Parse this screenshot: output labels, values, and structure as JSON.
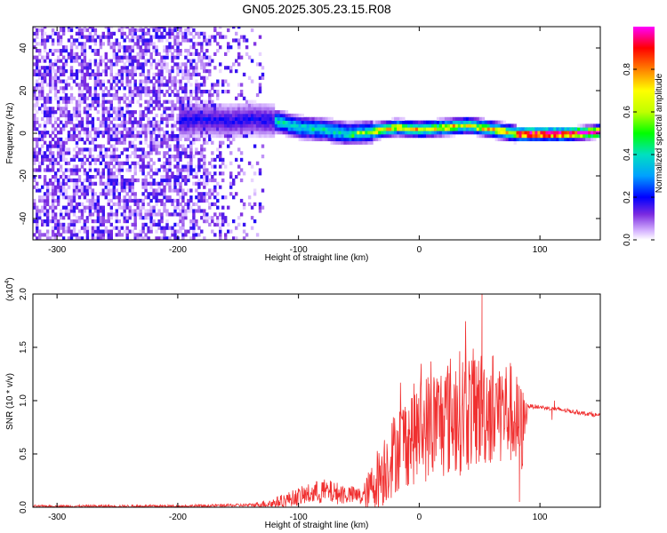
{
  "title": "GN05.2025.305.23.15.R08",
  "chart_data": [
    {
      "type": "heatmap",
      "name": "spectrogram",
      "xlabel": "Height of straight line (km)",
      "ylabel": "Frequency (Hz)",
      "xlim": [
        -320,
        150
      ],
      "ylim": [
        -50,
        50
      ],
      "xticks": [
        -300,
        -200,
        -100,
        0,
        100
      ],
      "yticks": [
        -40,
        -20,
        0,
        20,
        40
      ],
      "colorbar": {
        "label": "Normalized spectral amplitude",
        "range": [
          0,
          1
        ],
        "ticks": [
          0.0,
          0.2,
          0.4,
          0.6,
          0.8
        ],
        "tick_labels": [
          "0.0",
          "0.2",
          "0.4",
          "0.6",
          "0.8"
        ],
        "colormap": [
          "#ffffff",
          "#d8b8ff",
          "#7b2be0",
          "#0000ff",
          "#00a0ff",
          "#00e0c0",
          "#00ff00",
          "#c0ff00",
          "#ffff00",
          "#ff8000",
          "#ff0000",
          "#ff00ff"
        ]
      },
      "features": {
        "noise_region_km": [
          -320,
          -130
        ],
        "noise_amplitude": [
          0.02,
          0.2
        ],
        "ridge_start_km": -200,
        "ridge_center_hz": [
          [
            -200,
            5
          ],
          [
            -180,
            6
          ],
          [
            -160,
            5
          ],
          [
            -140,
            6
          ],
          [
            -120,
            5
          ],
          [
            -100,
            2
          ],
          [
            -80,
            1
          ],
          [
            -60,
            -1
          ],
          [
            -40,
            0
          ],
          [
            -20,
            2
          ],
          [
            0,
            1
          ],
          [
            20,
            2
          ],
          [
            40,
            3
          ],
          [
            60,
            1
          ],
          [
            80,
            -1
          ],
          [
            100,
            -1
          ],
          [
            120,
            -1
          ],
          [
            150,
            0
          ]
        ]
      }
    },
    {
      "type": "line",
      "name": "snr",
      "xlabel": "Height of straight line (km)",
      "ylabel": "SNR (10 * v/v)",
      "y_multiplier": "(x10",
      "y_multiplier_exp": "4",
      "y_multiplier_close": ")",
      "xlim": [
        -320,
        150
      ],
      "ylim": [
        0,
        2.0
      ],
      "xticks": [
        -300,
        -200,
        -100,
        0,
        100
      ],
      "yticks": [
        0.0,
        0.5,
        1.0,
        1.5,
        2.0
      ],
      "ytick_labels": [
        "0.0",
        "0.5",
        "1.0",
        "1.5",
        "2.0"
      ],
      "color": "#f03030",
      "envelope_mean": [
        [
          -320,
          0.01
        ],
        [
          -200,
          0.01
        ],
        [
          -140,
          0.02
        ],
        [
          -120,
          0.04
        ],
        [
          -100,
          0.1
        ],
        [
          -80,
          0.15
        ],
        [
          -60,
          0.12
        ],
        [
          -45,
          0.1
        ],
        [
          -30,
          0.35
        ],
        [
          -15,
          0.6
        ],
        [
          0,
          0.72
        ],
        [
          15,
          0.8
        ],
        [
          30,
          0.88
        ],
        [
          45,
          0.92
        ],
        [
          60,
          0.94
        ],
        [
          75,
          0.9
        ],
        [
          85,
          0.7
        ],
        [
          90,
          0.95
        ],
        [
          100,
          0.94
        ],
        [
          120,
          0.91
        ],
        [
          150,
          0.86
        ]
      ],
      "envelope_noise": [
        [
          -320,
          0.01
        ],
        [
          -140,
          0.015
        ],
        [
          -120,
          0.05
        ],
        [
          -80,
          0.12
        ],
        [
          -50,
          0.08
        ],
        [
          -30,
          0.35
        ],
        [
          0,
          0.5
        ],
        [
          30,
          0.6
        ],
        [
          60,
          0.55
        ],
        [
          85,
          0.45
        ],
        [
          90,
          0.02
        ],
        [
          150,
          0.02
        ]
      ],
      "notable_points": [
        [
          52,
          2.0
        ],
        [
          83,
          0.05
        ],
        [
          110,
          0.82
        ],
        [
          112,
          1.0
        ]
      ]
    }
  ]
}
